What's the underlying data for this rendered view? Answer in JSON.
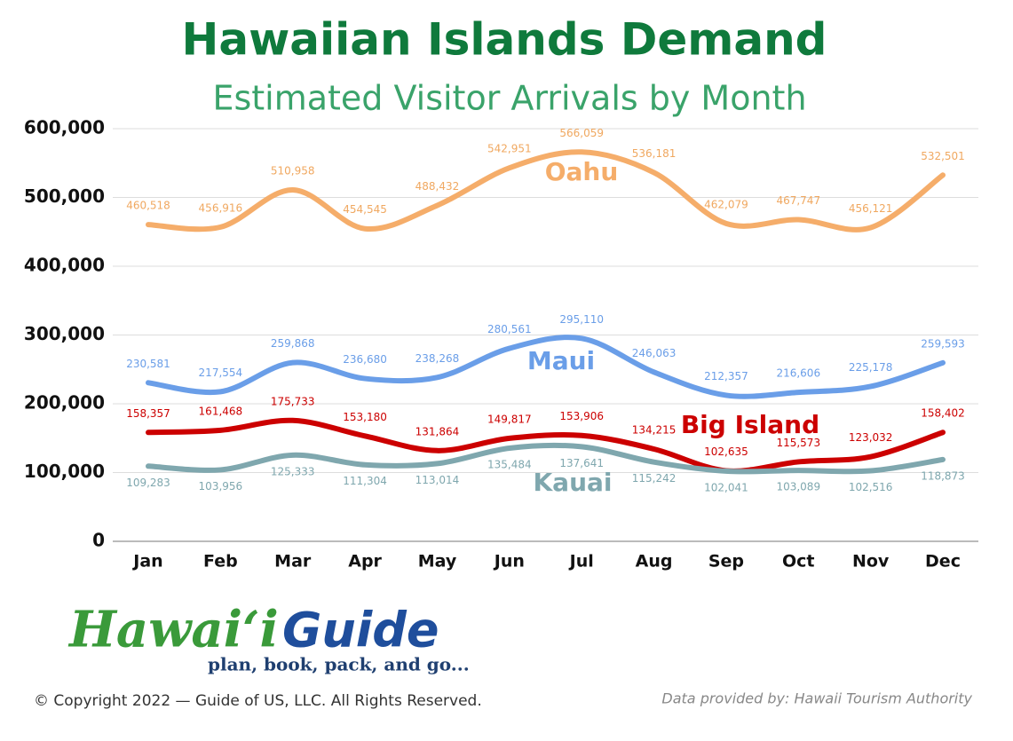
{
  "chart_data": {
    "type": "line",
    "title": "Hawaiian Islands Demand",
    "subtitle": "Estimated Visitor Arrivals by Month",
    "categories": [
      "Jan",
      "Feb",
      "Mar",
      "Apr",
      "May",
      "Jun",
      "Jul",
      "Aug",
      "Sep",
      "Oct",
      "Nov",
      "Dec"
    ],
    "series": [
      {
        "name": "Oahu",
        "color": "#f5ad6a",
        "values": [
          460518,
          456916,
          510958,
          454545,
          488432,
          542951,
          566059,
          536181,
          462079,
          467747,
          456121,
          532501
        ],
        "value_labels": [
          "460,518",
          "456,916",
          "510,958",
          "454,545",
          "488,432",
          "542,951",
          "566,059",
          "536,181",
          "462,079",
          "467,747",
          "456,121",
          "532,501"
        ]
      },
      {
        "name": "Maui",
        "color": "#6a9ee8",
        "values": [
          230581,
          217554,
          259868,
          236680,
          238268,
          280561,
          295110,
          246063,
          212357,
          216606,
          225178,
          259593
        ],
        "value_labels": [
          "230,581",
          "217,554",
          "259,868",
          "236,680",
          "238,268",
          "280,561",
          "295,110",
          "246,063",
          "212,357",
          "216,606",
          "225,178",
          "259,593"
        ]
      },
      {
        "name": "Big Island",
        "color": "#cc0000",
        "values": [
          158357,
          161468,
          175733,
          153180,
          131864,
          149817,
          153906,
          134215,
          102635,
          115573,
          123032,
          158402
        ],
        "value_labels": [
          "158,357",
          "161,468",
          "175,733",
          "153,180",
          "131,864",
          "149,817",
          "153,906",
          "134,215",
          "102,635",
          "115,573",
          "123,032",
          "158,402"
        ]
      },
      {
        "name": "Kauai",
        "color": "#7fa7ae",
        "values": [
          109283,
          103956,
          125333,
          111304,
          113014,
          135484,
          137641,
          115242,
          102041,
          103089,
          102516,
          118873
        ],
        "value_labels": [
          "109,283",
          "103,956",
          "125,333",
          "111,304",
          "113,014",
          "135,484",
          "137,641",
          "115,242",
          "102,041",
          "103,089",
          "102,516",
          "118,873"
        ]
      }
    ],
    "ylim": [
      0,
      600000
    ],
    "yticks": [
      0,
      {
        "value": 100000,
        "label": "100,000"
      },
      {
        "value": 200000,
        "label": "200,000"
      },
      {
        "value": 300000,
        "label": "300,000"
      },
      {
        "value": 400000,
        "label": "400,000"
      },
      {
        "value": 500000,
        "label": "500,000"
      },
      {
        "value": 600000,
        "label": "600,000"
      }
    ],
    "grid": true
  },
  "logo": {
    "brand_left": "Hawaiʻi",
    "brand_right": "Guide",
    "tagline": "plan, book, pack, and go..."
  },
  "footer": {
    "copyright": "© Copyright 2022 — Guide of US, LLC. All Rights Reserved.",
    "source": "Data provided by: Hawaii Tourism Authority"
  }
}
